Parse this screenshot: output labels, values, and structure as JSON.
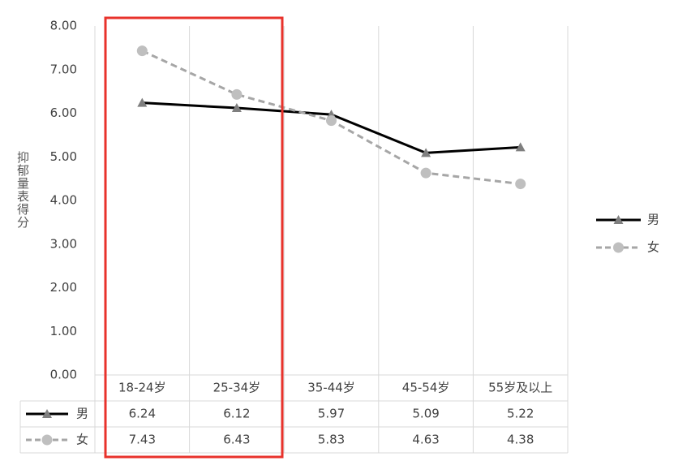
{
  "chart_data": {
    "type": "line",
    "y_label": "抑郁量表得分",
    "categories": [
      "18-24岁",
      "25-34岁",
      "35-44岁",
      "45-54岁",
      "55岁及以上"
    ],
    "series": [
      {
        "name": "男",
        "color": "#000000",
        "marker_color": "#7f7f7f",
        "marker": "triangle",
        "dashed": false,
        "values": [
          6.24,
          6.12,
          5.97,
          5.09,
          5.22
        ]
      },
      {
        "name": "女",
        "color": "#a6a6a6",
        "marker_color": "#bfbfbf",
        "marker": "circle",
        "dashed": true,
        "values": [
          7.43,
          6.43,
          5.83,
          4.63,
          4.38
        ]
      }
    ],
    "ylim": [
      0,
      8
    ],
    "yticks": [
      {
        "value": 0,
        "label": "0.00"
      },
      {
        "value": 1,
        "label": "1.00"
      },
      {
        "value": 2,
        "label": "2.00"
      },
      {
        "value": 3,
        "label": "3.00"
      },
      {
        "value": 4,
        "label": "4.00"
      },
      {
        "value": 5,
        "label": "5.00"
      },
      {
        "value": 6,
        "label": "6.00"
      },
      {
        "value": 7,
        "label": "7.00"
      },
      {
        "value": 8,
        "label": "8.00"
      }
    ],
    "legend": "right"
  }
}
